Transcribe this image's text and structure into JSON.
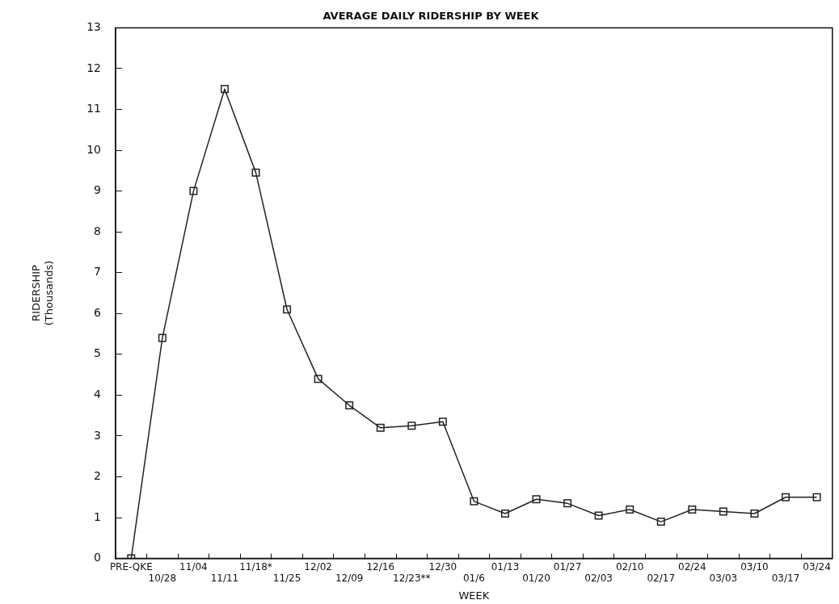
{
  "chart_data": {
    "type": "line",
    "title": "AVERAGE DAILY RIDERSHIP BY WEEK",
    "xlabel": "WEEK",
    "ylabel": "RIDERSHIP\n(Thousands)",
    "categories": [
      "PRE-QKE",
      "10/28",
      "11/04",
      "11/11",
      "11/18*",
      "11/25",
      "12/02",
      "12/09",
      "12/16",
      "12/23**",
      "12/30",
      "01/6",
      "01/13",
      "01/20",
      "01/27",
      "02/03",
      "02/10",
      "02/17",
      "02/24",
      "03/03",
      "03/10",
      "03/17",
      "03/24"
    ],
    "series": [
      {
        "color": "#222222",
        "values": [
          0,
          5.4,
          9.0,
          11.5,
          9.45,
          6.1,
          4.4,
          3.75,
          3.2,
          3.25,
          3.35,
          1.4,
          1.1,
          1.45,
          1.35,
          1.05,
          1.2,
          0.9,
          1.2,
          1.15,
          1.1,
          1.5,
          1.5
        ]
      }
    ],
    "ylim": [
      0,
      13
    ],
    "yticks": [
      0,
      1,
      2,
      3,
      4,
      5,
      6,
      7,
      8,
      9,
      10,
      11,
      12,
      13
    ],
    "grid": false,
    "legend": false,
    "marker": "square",
    "line_style": "solid"
  }
}
